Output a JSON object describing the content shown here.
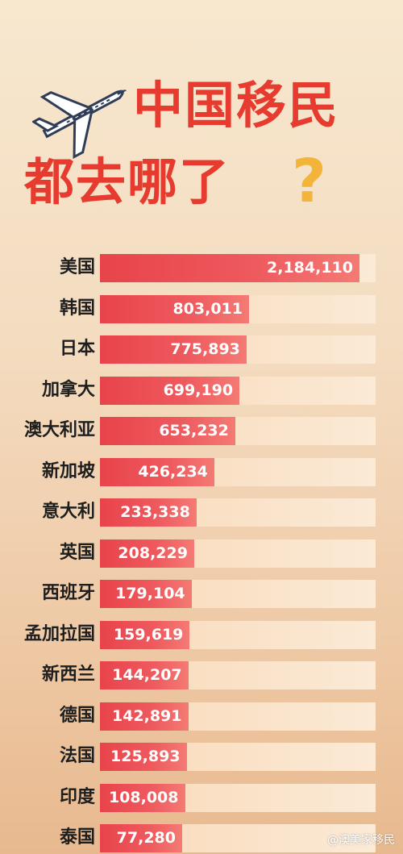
{
  "header": {
    "title_line1": "中国移民",
    "title_line2": "都去哪了",
    "question_mark": "?"
  },
  "colors": {
    "title": "#e63b2e",
    "bar": "#e8434b",
    "track": "#f9d9b8",
    "question_mark": "#f2b53a"
  },
  "chart_data": {
    "type": "bar",
    "orientation": "horizontal",
    "categories": [
      "美国",
      "韩国",
      "日本",
      "加拿大",
      "澳大利亚",
      "新加坡",
      "意大利",
      "英国",
      "西班牙",
      "孟加拉国",
      "新西兰",
      "德国",
      "法国",
      "印度",
      "泰国"
    ],
    "values": [
      2184110,
      803011,
      775893,
      699190,
      653232,
      426234,
      233338,
      208229,
      179104,
      159619,
      144207,
      142891,
      125893,
      108008,
      77280
    ],
    "value_labels": [
      "2,184,110",
      "803,011",
      "775,893",
      "699,190",
      "653,232",
      "426,234",
      "233,338",
      "208,229",
      "179,104",
      "159,619",
      "144,207",
      "142,891",
      "125,893",
      "108,008",
      "77,280"
    ],
    "title": "中国移民都去哪了?",
    "xlabel": "",
    "ylabel": "",
    "grid": false,
    "legend": "none"
  },
  "watermark": "@澳美家移民",
  "icons": {
    "plane": "airplane-icon"
  }
}
